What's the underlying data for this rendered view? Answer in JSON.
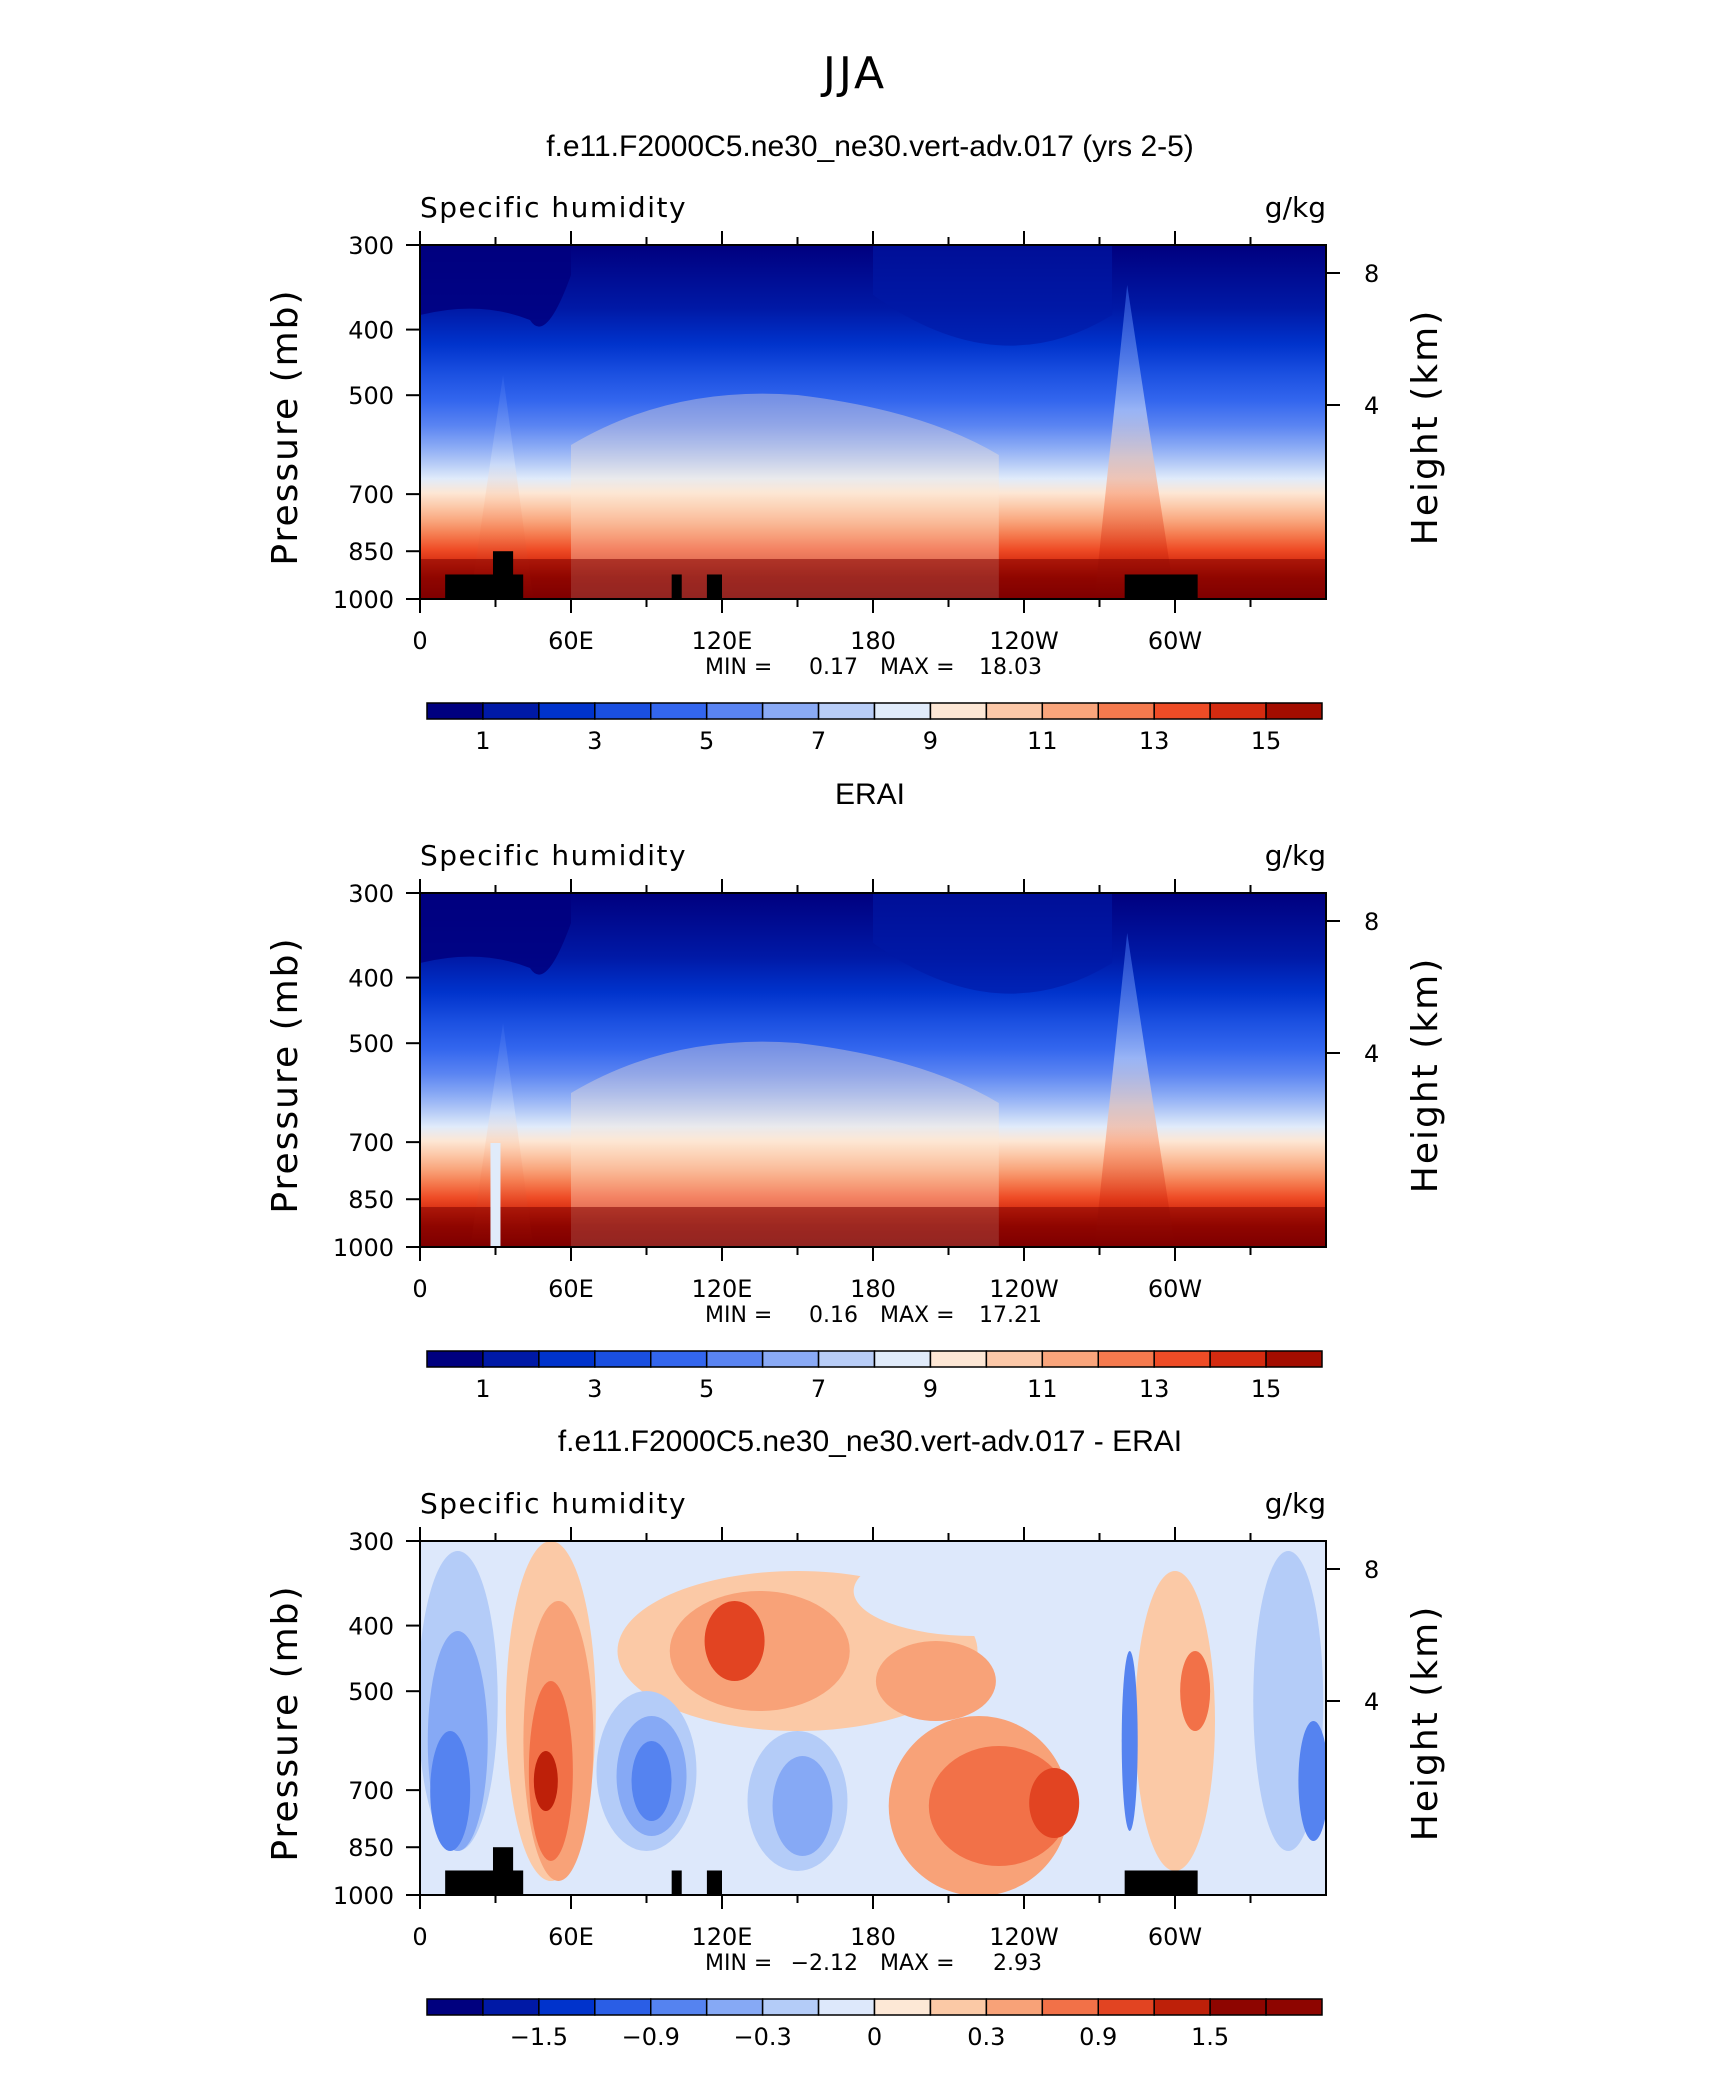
{
  "figure": {
    "title": "JJA"
  },
  "chart_data": [
    {
      "type": "heatmap",
      "title": "f.e11.F2000C5.ne30_ne30.vert-adv.017 (yrs 2-5)",
      "variable": "Specific humidity",
      "units": "g/kg",
      "ylabel": "Pressure (mb)",
      "ylabel_right": "Height (km)",
      "x_ticks": [
        "0",
        "60E",
        "120E",
        "180",
        "120W",
        "60W"
      ],
      "y_ticks": [
        "300",
        "400",
        "500",
        "700",
        "850",
        "1000"
      ],
      "y2_ticks": [
        "8",
        "4"
      ],
      "xlim": [
        0,
        360
      ],
      "ylim": [
        1000,
        300
      ],
      "stats": {
        "min_label": "MIN =",
        "min": "0.17",
        "max_label": "MAX =",
        "max": "18.03"
      },
      "colorbar_labels": [
        "1",
        "3",
        "5",
        "7",
        "9",
        "11",
        "13",
        "15"
      ],
      "colors": [
        "#00007f",
        "#0019a6",
        "#0033cc",
        "#1a4fe0",
        "#3366ee",
        "#5a84f2",
        "#8aaaf5",
        "#b8cdf7",
        "#e0ebfa",
        "#fde7d5",
        "#fcc8a8",
        "#f9a57c",
        "#f57a4e",
        "#ef4c26",
        "#d42b10",
        "#a30d00",
        "#7f0000"
      ]
    },
    {
      "type": "heatmap",
      "title": "ERAI",
      "variable": "Specific humidity",
      "units": "g/kg",
      "ylabel": "Pressure (mb)",
      "ylabel_right": "Height (km)",
      "x_ticks": [
        "0",
        "60E",
        "120E",
        "180",
        "120W",
        "60W"
      ],
      "y_ticks": [
        "300",
        "400",
        "500",
        "700",
        "850",
        "1000"
      ],
      "y2_ticks": [
        "8",
        "4"
      ],
      "xlim": [
        0,
        360
      ],
      "ylim": [
        1000,
        300
      ],
      "stats": {
        "min_label": "MIN =",
        "min": "0.16",
        "max_label": "MAX =",
        "max": "17.21"
      },
      "colorbar_labels": [
        "1",
        "3",
        "5",
        "7",
        "9",
        "11",
        "13",
        "15"
      ]
    },
    {
      "type": "heatmap",
      "title": "f.e11.F2000C5.ne30_ne30.vert-adv.017 - ERAI",
      "variable": "Specific humidity",
      "units": "g/kg",
      "ylabel": "Pressure (mb)",
      "ylabel_right": "Height (km)",
      "x_ticks": [
        "0",
        "60E",
        "120E",
        "180",
        "120W",
        "60W"
      ],
      "y_ticks": [
        "300",
        "400",
        "500",
        "700",
        "850",
        "1000"
      ],
      "y2_ticks": [
        "8",
        "4"
      ],
      "xlim": [
        0,
        360
      ],
      "ylim": [
        1000,
        300
      ],
      "stats": {
        "min_label": "MIN =",
        "min": "−2.12",
        "max_label": "MAX =",
        "max": "2.93"
      },
      "colorbar_labels": [
        "−1.5",
        "−0.9",
        "−0.3",
        "0",
        "0.3",
        "0.9",
        "1.5"
      ]
    }
  ]
}
